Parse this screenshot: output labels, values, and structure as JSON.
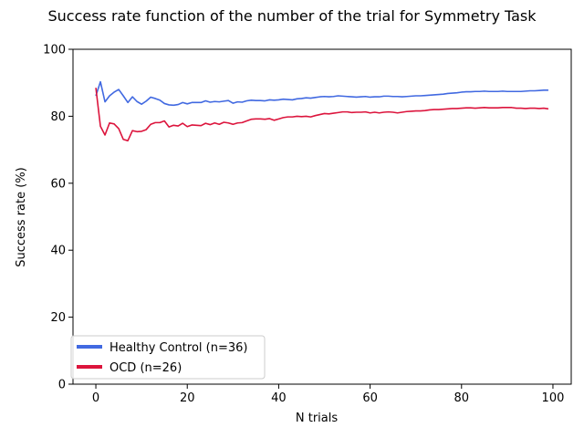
{
  "chart_data": {
    "type": "line",
    "title": "Success rate function of the number of the trial for Symmetry Task",
    "xlabel": "N trials",
    "ylabel": "Success rate (%)",
    "xlim": [
      -5,
      104
    ],
    "ylim": [
      0,
      100
    ],
    "xticks": [
      0,
      20,
      40,
      60,
      80,
      100
    ],
    "yticks": [
      0,
      20,
      40,
      60,
      80,
      100
    ],
    "grid": false,
    "legend_position": "lower-left",
    "series": [
      {
        "name": "Healthy Control (n=36)",
        "color": "#4169e1",
        "x": [
          0,
          1,
          2,
          3,
          4,
          5,
          6,
          7,
          8,
          9,
          10,
          11,
          12,
          13,
          14,
          15,
          16,
          17,
          18,
          19,
          20,
          21,
          22,
          23,
          24,
          25,
          26,
          27,
          28,
          29,
          30,
          31,
          32,
          33,
          34,
          35,
          36,
          37,
          38,
          39,
          40,
          41,
          42,
          43,
          44,
          45,
          46,
          47,
          48,
          49,
          50,
          51,
          52,
          53,
          54,
          55,
          56,
          57,
          58,
          59,
          60,
          61,
          62,
          63,
          64,
          65,
          66,
          67,
          68,
          69,
          70,
          71,
          72,
          73,
          74,
          75,
          76,
          77,
          78,
          79,
          80,
          81,
          82,
          83,
          84,
          85,
          86,
          87,
          88,
          89,
          90,
          91,
          92,
          93,
          94,
          95,
          96,
          97,
          98,
          99
        ],
        "y": [
          86.1,
          90.3,
          84.3,
          86.1,
          87.2,
          88.0,
          86.1,
          84.1,
          85.8,
          84.4,
          83.6,
          84.5,
          85.7,
          85.3,
          84.8,
          83.8,
          83.4,
          83.3,
          83.5,
          84.1,
          83.7,
          84.1,
          84.1,
          84.1,
          84.6,
          84.2,
          84.4,
          84.3,
          84.5,
          84.7,
          83.9,
          84.3,
          84.2,
          84.6,
          84.8,
          84.7,
          84.7,
          84.6,
          84.9,
          84.8,
          84.9,
          85.1,
          85.0,
          84.9,
          85.2,
          85.3,
          85.5,
          85.4,
          85.6,
          85.8,
          85.9,
          85.8,
          85.9,
          86.1,
          86.0,
          85.9,
          85.8,
          85.7,
          85.8,
          85.9,
          85.7,
          85.8,
          85.8,
          86.0,
          86.0,
          85.9,
          85.9,
          85.8,
          85.9,
          86.0,
          86.1,
          86.1,
          86.2,
          86.3,
          86.4,
          86.5,
          86.6,
          86.8,
          86.9,
          87.0,
          87.2,
          87.3,
          87.3,
          87.4,
          87.4,
          87.5,
          87.4,
          87.4,
          87.4,
          87.5,
          87.4,
          87.4,
          87.4,
          87.4,
          87.5,
          87.6,
          87.6,
          87.7,
          87.8,
          87.8
        ]
      },
      {
        "name": "OCD (n=26)",
        "color": "#dc143c",
        "x": [
          0,
          1,
          2,
          3,
          4,
          5,
          6,
          7,
          8,
          9,
          10,
          11,
          12,
          13,
          14,
          15,
          16,
          17,
          18,
          19,
          20,
          21,
          22,
          23,
          24,
          25,
          26,
          27,
          28,
          29,
          30,
          31,
          32,
          33,
          34,
          35,
          36,
          37,
          38,
          39,
          40,
          41,
          42,
          43,
          44,
          45,
          46,
          47,
          48,
          49,
          50,
          51,
          52,
          53,
          54,
          55,
          56,
          57,
          58,
          59,
          60,
          61,
          62,
          63,
          64,
          65,
          66,
          67,
          68,
          69,
          70,
          71,
          72,
          73,
          74,
          75,
          76,
          77,
          78,
          79,
          80,
          81,
          82,
          83,
          84,
          85,
          86,
          87,
          88,
          89,
          90,
          91,
          92,
          93,
          94,
          95,
          96,
          97,
          98,
          99
        ],
        "y": [
          88.5,
          77.0,
          74.4,
          78.0,
          77.7,
          76.3,
          73.1,
          72.7,
          75.7,
          75.4,
          75.5,
          76.0,
          77.6,
          78.1,
          78.1,
          78.6,
          76.8,
          77.3,
          77.1,
          77.9,
          76.9,
          77.4,
          77.3,
          77.2,
          77.9,
          77.5,
          78.0,
          77.6,
          78.2,
          78.0,
          77.6,
          78.0,
          78.1,
          78.6,
          79.1,
          79.2,
          79.2,
          79.1,
          79.3,
          78.8,
          79.2,
          79.6,
          79.8,
          79.8,
          80.0,
          79.9,
          80.0,
          79.8,
          80.2,
          80.5,
          80.8,
          80.7,
          80.9,
          81.1,
          81.3,
          81.3,
          81.1,
          81.2,
          81.2,
          81.3,
          81.0,
          81.2,
          81.0,
          81.2,
          81.3,
          81.2,
          81.0,
          81.2,
          81.4,
          81.5,
          81.6,
          81.6,
          81.7,
          81.9,
          82.0,
          82.0,
          82.1,
          82.2,
          82.3,
          82.3,
          82.4,
          82.5,
          82.5,
          82.4,
          82.5,
          82.6,
          82.5,
          82.5,
          82.5,
          82.6,
          82.6,
          82.6,
          82.4,
          82.4,
          82.3,
          82.4,
          82.4,
          82.3,
          82.4,
          82.2
        ]
      }
    ]
  }
}
